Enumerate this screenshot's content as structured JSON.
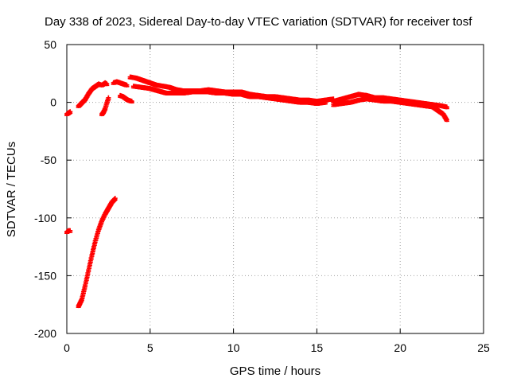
{
  "chart_data": {
    "type": "scatter",
    "title": "Day 338 of 2023, Sidereal Day-to-day VTEC variation (SDTVAR) for receiver tosf",
    "xlabel": "GPS time / hours",
    "ylabel": "SDTVAR / TECUs",
    "xlim": [
      0,
      25
    ],
    "ylim": [
      -200,
      50
    ],
    "xticks": [
      "0",
      "5",
      "10",
      "15",
      "20",
      "25"
    ],
    "yticks": [
      "50",
      "0",
      "-50",
      "-100",
      "-150",
      "-200"
    ],
    "grid": true,
    "marker": "+",
    "series_color": "#ff0000",
    "segments": [
      {
        "name": "seg-early-a",
        "points": [
          [
            0.0,
            -10
          ],
          [
            0.1,
            -9
          ],
          [
            0.2,
            -8
          ]
        ]
      },
      {
        "name": "seg-early-b",
        "points": [
          [
            0.0,
            -112
          ],
          [
            0.1,
            -111
          ],
          [
            0.2,
            -111
          ]
        ]
      },
      {
        "name": "seg-steep-rise",
        "points": [
          [
            0.7,
            -176
          ],
          [
            0.9,
            -170
          ],
          [
            1.1,
            -158
          ],
          [
            1.3,
            -145
          ],
          [
            1.5,
            -132
          ],
          [
            1.7,
            -120
          ],
          [
            1.9,
            -110
          ],
          [
            2.1,
            -102
          ],
          [
            2.3,
            -96
          ],
          [
            2.5,
            -91
          ],
          [
            2.7,
            -86
          ],
          [
            2.9,
            -83
          ]
        ]
      },
      {
        "name": "seg-climb",
        "points": [
          [
            0.7,
            -3
          ],
          [
            0.9,
            0
          ],
          [
            1.1,
            3
          ],
          [
            1.3,
            8
          ],
          [
            1.5,
            12
          ],
          [
            1.7,
            14
          ],
          [
            1.9,
            16
          ],
          [
            2.1,
            15
          ],
          [
            2.3,
            17
          ],
          [
            2.4,
            16
          ]
        ]
      },
      {
        "name": "seg-dip",
        "points": [
          [
            2.1,
            -10
          ],
          [
            2.2,
            -8
          ],
          [
            2.3,
            -5
          ],
          [
            2.4,
            0
          ],
          [
            2.5,
            4
          ]
        ]
      },
      {
        "name": "seg-hump",
        "points": [
          [
            2.8,
            17
          ],
          [
            3.0,
            18
          ],
          [
            3.2,
            17
          ],
          [
            3.4,
            16
          ],
          [
            3.6,
            15
          ]
        ]
      },
      {
        "name": "seg-low-tail",
        "points": [
          [
            3.2,
            6
          ],
          [
            3.4,
            5
          ],
          [
            3.7,
            2
          ],
          [
            3.9,
            1
          ]
        ]
      },
      {
        "name": "seg-main-1",
        "points": [
          [
            3.8,
            22
          ],
          [
            4.2,
            21
          ],
          [
            4.6,
            19
          ],
          [
            5.0,
            17
          ],
          [
            5.4,
            15
          ],
          [
            5.8,
            14
          ],
          [
            6.2,
            13
          ],
          [
            6.6,
            11
          ],
          [
            7.0,
            10
          ],
          [
            7.5,
            10
          ],
          [
            8.0,
            10
          ],
          [
            8.5,
            11
          ],
          [
            9.0,
            10
          ],
          [
            9.5,
            9
          ],
          [
            10.0,
            9
          ],
          [
            10.5,
            9
          ],
          [
            11.0,
            7
          ],
          [
            11.5,
            6
          ],
          [
            12.0,
            5
          ],
          [
            12.5,
            5
          ],
          [
            13.0,
            4
          ],
          [
            13.5,
            3
          ],
          [
            14.0,
            2
          ],
          [
            14.5,
            2
          ],
          [
            15.0,
            1
          ],
          [
            15.5,
            2
          ],
          [
            16.0,
            3
          ]
        ]
      },
      {
        "name": "seg-main-2",
        "points": [
          [
            4.0,
            14
          ],
          [
            4.5,
            13
          ],
          [
            5.0,
            12
          ],
          [
            5.5,
            10
          ],
          [
            6.0,
            8
          ],
          [
            6.5,
            8
          ],
          [
            7.0,
            8
          ],
          [
            7.5,
            9
          ],
          [
            8.0,
            9
          ],
          [
            8.5,
            9
          ],
          [
            9.0,
            8
          ],
          [
            9.5,
            8
          ],
          [
            10.0,
            7
          ],
          [
            10.5,
            7
          ],
          [
            11.0,
            5
          ],
          [
            11.5,
            5
          ],
          [
            12.0,
            4
          ],
          [
            12.5,
            3
          ],
          [
            13.0,
            2
          ],
          [
            13.5,
            1
          ],
          [
            14.0,
            0
          ],
          [
            14.5,
            0
          ],
          [
            15.0,
            -1
          ],
          [
            15.5,
            0
          ]
        ]
      },
      {
        "name": "seg-late-1",
        "points": [
          [
            16.0,
            1
          ],
          [
            16.5,
            3
          ],
          [
            17.0,
            5
          ],
          [
            17.5,
            7
          ],
          [
            18.0,
            6
          ],
          [
            18.5,
            4
          ],
          [
            19.0,
            4
          ],
          [
            19.5,
            3
          ],
          [
            20.0,
            2
          ],
          [
            20.5,
            1
          ],
          [
            21.0,
            0
          ],
          [
            21.5,
            -1
          ],
          [
            22.0,
            -2
          ],
          [
            22.5,
            -3
          ],
          [
            22.8,
            -4
          ]
        ]
      },
      {
        "name": "seg-late-2",
        "points": [
          [
            16.0,
            -2
          ],
          [
            16.5,
            -1
          ],
          [
            17.0,
            0
          ],
          [
            17.5,
            2
          ],
          [
            18.0,
            3
          ],
          [
            18.5,
            2
          ],
          [
            19.0,
            1
          ],
          [
            19.5,
            1
          ],
          [
            20.0,
            0
          ],
          [
            20.5,
            -1
          ],
          [
            21.0,
            -2
          ],
          [
            21.5,
            -3
          ],
          [
            22.0,
            -4
          ],
          [
            22.3,
            -7
          ],
          [
            22.6,
            -10
          ],
          [
            22.8,
            -15
          ]
        ]
      }
    ]
  }
}
